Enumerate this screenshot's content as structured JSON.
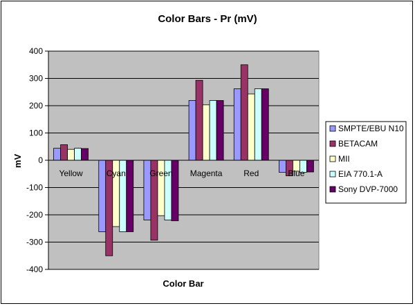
{
  "chart_data": {
    "type": "bar",
    "title": "Color Bars - Pr (mV)",
    "xlabel": "Color Bar",
    "ylabel": "mV",
    "ylim": [
      -400,
      400
    ],
    "yticks": [
      -400,
      -300,
      -200,
      -100,
      0,
      100,
      200,
      300,
      400
    ],
    "grid": true,
    "legend_position": "right",
    "categories": [
      "Yellow",
      "Cyan",
      "Green",
      "Magenta",
      "Red",
      "Blue"
    ],
    "series": [
      {
        "name": "SMPTE/EBU N10",
        "color": "#9999ff",
        "values": [
          44,
          -262,
          -219,
          219,
          262,
          -44
        ]
      },
      {
        "name": "BETACAM",
        "color": "#993366",
        "values": [
          57,
          -350,
          -293,
          293,
          350,
          -57
        ]
      },
      {
        "name": "MII",
        "color": "#ffffcc",
        "values": [
          40,
          -243,
          -203,
          203,
          243,
          -40
        ]
      },
      {
        "name": "EIA 770.1-A",
        "color": "#ccffff",
        "values": [
          44,
          -262,
          -219,
          219,
          262,
          -44
        ]
      },
      {
        "name": "Sony DVP-7000",
        "color": "#660066",
        "values": [
          43,
          -262,
          -222,
          219,
          262,
          -43
        ]
      }
    ]
  },
  "colors": {
    "plot_area": "#c0c0c0",
    "gridline": "#000000"
  }
}
